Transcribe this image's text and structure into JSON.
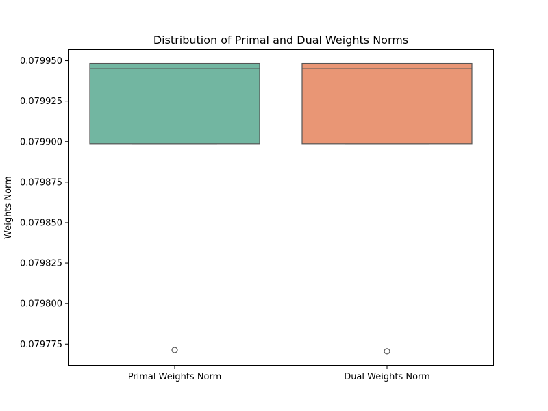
{
  "chart_data": {
    "type": "box",
    "title": "Distribution of Primal and Dual Weights Norms",
    "xlabel": "",
    "ylabel": "Weights Norm",
    "ylim": [
      0.079762,
      0.079957
    ],
    "yticks": [
      0.079775,
      0.0798,
      0.079825,
      0.07985,
      0.079875,
      0.0799,
      0.079925,
      0.07995
    ],
    "ytick_labels": [
      "0.079775",
      "0.079800",
      "0.079825",
      "0.079850",
      "0.079875",
      "0.079900",
      "0.079925",
      "0.079950"
    ],
    "grid": false,
    "categories": [
      "Primal Weights Norm",
      "Dual Weights Norm"
    ],
    "boxes": [
      {
        "category": "Primal Weights Norm",
        "whisker_low": 0.0798987,
        "q1": 0.0798987,
        "median": 0.0799451,
        "q3": 0.0799483,
        "whisker_high": 0.0799483,
        "outliers": [
          0.0797713
        ],
        "color": "#72b6a1"
      },
      {
        "category": "Dual Weights Norm",
        "whisker_low": 0.0798987,
        "q1": 0.0798987,
        "median": 0.0799451,
        "q3": 0.0799483,
        "whisker_high": 0.0799483,
        "outliers": [
          0.0797705
        ],
        "color": "#e99675"
      }
    ],
    "line_color": "#555555"
  }
}
